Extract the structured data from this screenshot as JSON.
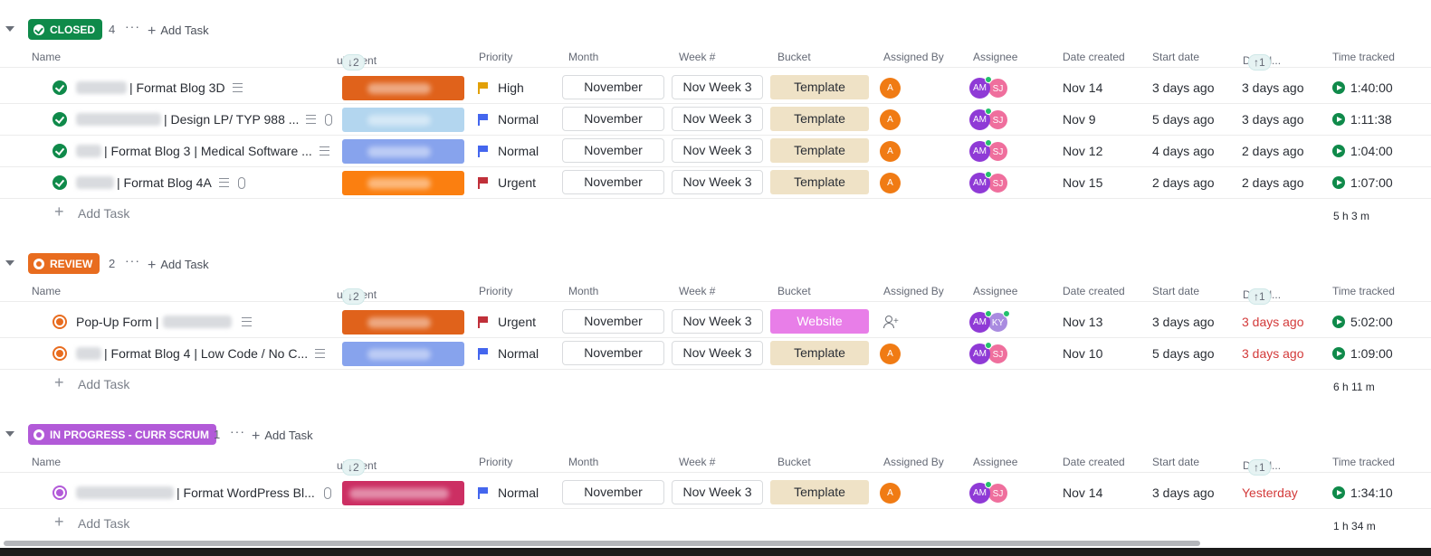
{
  "columns": {
    "name": "Name",
    "subclient": "ubClient",
    "subclient_sort": "↓2",
    "priority": "Priority",
    "month": "Month",
    "week": "Week #",
    "bucket": "Bucket",
    "assigned_by": "Assigned By",
    "assignee": "Assignee",
    "date_created": "Date created",
    "start_date": "Start date",
    "due_date": "Due d...",
    "due_date_sort": "↑1",
    "time_tracked": "Time tracked"
  },
  "add_task_label": "Add Task",
  "colors": {
    "closed": "#0f8a4a",
    "review": "#e86c1f",
    "in_progress": "#b25ad8",
    "overdue": "#d33a3a",
    "template": "#efe2c6",
    "website": "#e87ee8",
    "urgent_flag": "#c0303a",
    "high_flag": "#e2a008",
    "normal_flag": "#4466ee"
  },
  "groups": [
    {
      "status": "CLOSED",
      "count": "4",
      "total": "5 h 3 m",
      "tasks": [
        {
          "name": "| Format Blog 3D",
          "subclient_color": "#e0621b",
          "priority": "High",
          "flag": "high",
          "month": "November",
          "week": "Nov Week 3",
          "bucket": "Template",
          "assigned_by": "A",
          "assignee1": "AM",
          "assignee2": "SJ",
          "date_created": "Nov 14",
          "start_date": "3 days ago",
          "due_date": "3 days ago",
          "due_overdue": false,
          "time": "1:40:00",
          "clip": false
        },
        {
          "name": "| Design LP/ TYP 988 ...",
          "subclient_color": "#b3d6ef",
          "priority": "Normal",
          "flag": "normal",
          "month": "November",
          "week": "Nov Week 3",
          "bucket": "Template",
          "assigned_by": "A",
          "assignee1": "AM",
          "assignee2": "SJ",
          "date_created": "Nov 9",
          "start_date": "5 days ago",
          "due_date": "3 days ago",
          "due_overdue": false,
          "time": "1:11:38",
          "clip": true
        },
        {
          "name": "| Format Blog 3 | Medical Software ...",
          "subclient_color": "#87a3ed",
          "priority": "Normal",
          "flag": "normal",
          "month": "November",
          "week": "Nov Week 3",
          "bucket": "Template",
          "assigned_by": "A",
          "assignee1": "AM",
          "assignee2": "SJ",
          "date_created": "Nov 12",
          "start_date": "4 days ago",
          "due_date": "2 days ago",
          "due_overdue": false,
          "time": "1:04:00",
          "clip": false
        },
        {
          "name": "| Format Blog 4A",
          "subclient_color": "#fb7f10",
          "priority": "Urgent",
          "flag": "urgent",
          "month": "November",
          "week": "Nov Week 3",
          "bucket": "Template",
          "assigned_by": "A",
          "assignee1": "AM",
          "assignee2": "SJ",
          "date_created": "Nov 15",
          "start_date": "2 days ago",
          "due_date": "2 days ago",
          "due_overdue": false,
          "time": "1:07:00",
          "clip": true
        }
      ]
    },
    {
      "status": "REVIEW",
      "count": "2",
      "total": "6 h 11 m",
      "tasks": [
        {
          "name": "Pop-Up Form |",
          "subclient_color": "#e0621b",
          "priority": "Urgent",
          "flag": "urgent",
          "month": "November",
          "week": "Nov Week 3",
          "bucket": "Website",
          "assigned_by": "",
          "assignee1": "AM",
          "assignee2": "KY",
          "date_created": "Nov 13",
          "start_date": "3 days ago",
          "due_date": "3 days ago",
          "due_overdue": true,
          "time": "5:02:00",
          "clip": false
        },
        {
          "name": "| Format Blog 4 | Low Code / No C...",
          "subclient_color": "#87a3ed",
          "priority": "Normal",
          "flag": "normal",
          "month": "November",
          "week": "Nov Week 3",
          "bucket": "Template",
          "assigned_by": "A",
          "assignee1": "AM",
          "assignee2": "SJ",
          "date_created": "Nov 10",
          "start_date": "5 days ago",
          "due_date": "3 days ago",
          "due_overdue": true,
          "time": "1:09:00",
          "clip": false
        }
      ]
    },
    {
      "status": "IN PROGRESS - CURR SCRUM",
      "count": "1",
      "total": "1 h 34 m",
      "tasks": [
        {
          "name": "| Format WordPress Bl...",
          "subclient_color": "#cc2f63",
          "priority": "Normal",
          "flag": "normal",
          "month": "November",
          "week": "Nov Week 3",
          "bucket": "Template",
          "assigned_by": "A",
          "assignee1": "AM",
          "assignee2": "SJ",
          "date_created": "Nov 14",
          "start_date": "3 days ago",
          "due_date": "Yesterday",
          "due_overdue": true,
          "time": "1:34:10",
          "clip": true
        }
      ]
    }
  ]
}
